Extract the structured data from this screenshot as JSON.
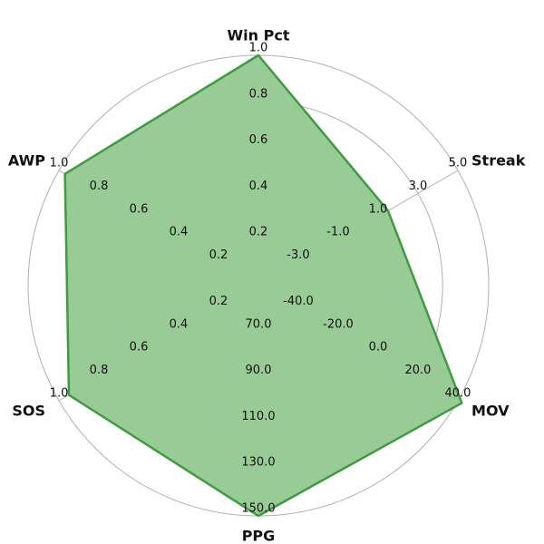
{
  "chart_data": {
    "type": "radar",
    "title": "",
    "axes": [
      {
        "label": "Win Pct",
        "ticks": [
          "0.2",
          "0.4",
          "0.6",
          "0.8",
          "1.0"
        ],
        "range": [
          0,
          1.0
        ],
        "value": 1.0
      },
      {
        "label": "Streak",
        "ticks": [
          "-3.0",
          "-1.0",
          "1.0",
          "3.0",
          "5.0"
        ],
        "range": [
          -5.0,
          5.0
        ],
        "value": 1.5
      },
      {
        "label": "MOV",
        "ticks": [
          "-40.0",
          "-20.0",
          "0.0",
          "20.0",
          "40.0"
        ],
        "range": [
          -60.0,
          40.0
        ],
        "value": 42.0
      },
      {
        "label": "PPG",
        "ticks": [
          "70.0",
          "90.0",
          "110.0",
          "130.0",
          "150.0"
        ],
        "range": [
          50.0,
          150.0
        ],
        "value": 150.0
      },
      {
        "label": "SOS",
        "ticks": [
          "0.2",
          "0.4",
          "0.6",
          "0.8",
          "1.0"
        ],
        "range": [
          0,
          1.0
        ],
        "value": 0.95
      },
      {
        "label": "AWP",
        "ticks": [
          "0.2",
          "0.4",
          "0.6",
          "0.8",
          "1.0"
        ],
        "range": [
          0,
          1.0
        ],
        "value": 0.97
      }
    ],
    "rings": [
      0.2,
      0.4,
      0.6,
      0.8,
      1.0
    ],
    "grid": true,
    "fill_color": "#98cb96",
    "line_color": "#3e9c3e",
    "grid_color": "#b0b0b0"
  }
}
